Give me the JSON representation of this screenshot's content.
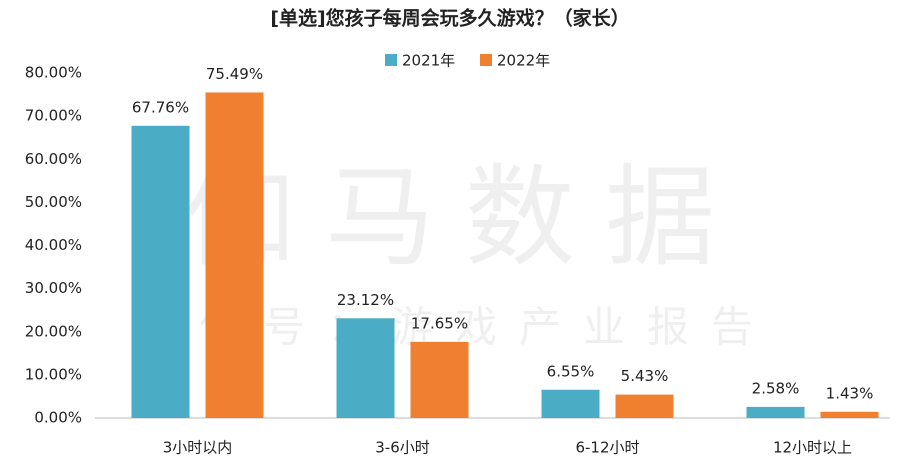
{
  "chart_data": {
    "type": "bar",
    "title": "[单选]您孩子每周会玩多久游戏？（家长）",
    "watermark": [
      "伽马数据",
      "微信号：游戏产业报告"
    ],
    "categories": [
      "3小时以内",
      "3-6小时",
      "6-12小时",
      "12小时以上"
    ],
    "series": [
      {
        "name": "2021年",
        "color": "#4bacc6",
        "values": [
          67.76,
          23.12,
          6.55,
          2.58
        ],
        "value_labels": [
          "67.76%",
          "23.12%",
          "6.55%",
          "2.58%"
        ]
      },
      {
        "name": "2022年",
        "color": "#f07f2f",
        "values": [
          75.49,
          17.65,
          5.43,
          1.43
        ],
        "value_labels": [
          "75.49%",
          "17.65%",
          "5.43%",
          "1.43%"
        ]
      }
    ],
    "ylim": [
      0,
      80
    ],
    "yticks": [
      {
        "value": 0,
        "label": "0.00%"
      },
      {
        "value": 10,
        "label": "10.00%"
      },
      {
        "value": 20,
        "label": "20.00%"
      },
      {
        "value": 30,
        "label": "30.00%"
      },
      {
        "value": 40,
        "label": "40.00%"
      },
      {
        "value": 50,
        "label": "50.00%"
      },
      {
        "value": 60,
        "label": "60.00%"
      },
      {
        "value": 70,
        "label": "70.00%"
      },
      {
        "value": 80,
        "label": "80.00%"
      }
    ],
    "legend": "top"
  }
}
